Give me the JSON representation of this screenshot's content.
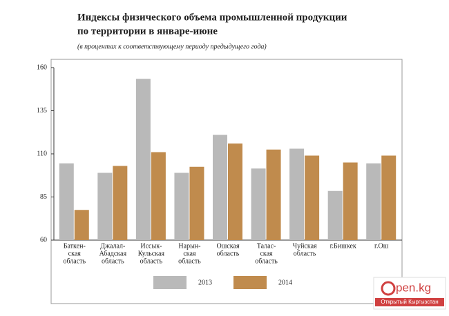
{
  "chart_data": {
    "type": "bar",
    "title": "Индексы физического объема промышленной продукции",
    "subtitle": "по территории в январе-июне",
    "note": "(в процентах к соответствующему периоду предыдущего года)",
    "categories": [
      [
        "Баткен-",
        "ская",
        "область"
      ],
      [
        "Джалал-",
        "Абадская",
        "область"
      ],
      [
        "Иссык-",
        "Кульская",
        "область"
      ],
      [
        "Нарын-",
        "ская",
        "область"
      ],
      [
        "Ошская",
        "область"
      ],
      [
        "Талас-",
        "ская",
        "область"
      ],
      [
        "Чуйская",
        "область"
      ],
      [
        "г.Бишкек"
      ],
      [
        "г.Ош"
      ]
    ],
    "series": [
      {
        "name": "2013",
        "color": "#b9b9b9",
        "values": [
          104.5,
          99,
          153.5,
          99,
          121,
          101.5,
          113,
          88.5,
          104.5
        ]
      },
      {
        "name": "2014",
        "color": "#c08b4d",
        "values": [
          77.5,
          103,
          111,
          102.5,
          116,
          112.5,
          109,
          105,
          109
        ]
      }
    ],
    "ylim": [
      60,
      160
    ],
    "yticks": [
      60,
      85,
      110,
      135,
      160
    ]
  },
  "watermark": {
    "logo": "pen.kg",
    "caption": "Открытый Кыргызстан"
  }
}
